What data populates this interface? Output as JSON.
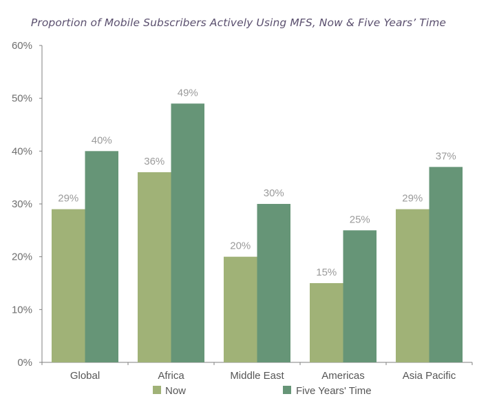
{
  "chart_data": {
    "type": "bar",
    "title": "Proportion of Mobile Subscribers Actively Using MFS, Now & Five Years’ Time",
    "xlabel": "",
    "ylabel": "",
    "categories": [
      "Global",
      "Africa",
      "Middle East",
      "Americas",
      "Asia Pacific"
    ],
    "series": [
      {
        "name": "Now",
        "color": "#a0b277",
        "values": [
          29,
          36,
          20,
          15,
          29
        ],
        "labels": [
          "29%",
          "36%",
          "20%",
          "15%",
          "29%"
        ]
      },
      {
        "name": "Five Years' Time",
        "color": "#669577",
        "values": [
          40,
          49,
          30,
          25,
          37
        ],
        "labels": [
          "40%",
          "49%",
          "30%",
          "25%",
          "37%"
        ]
      }
    ],
    "ylim": [
      0,
      60
    ],
    "yticks": [
      0,
      10,
      20,
      30,
      40,
      50,
      60
    ],
    "ytick_labels": [
      "0%",
      "10%",
      "20%",
      "30%",
      "40%",
      "50%",
      "60%"
    ],
    "grid": false,
    "legend_position": "bottom"
  }
}
